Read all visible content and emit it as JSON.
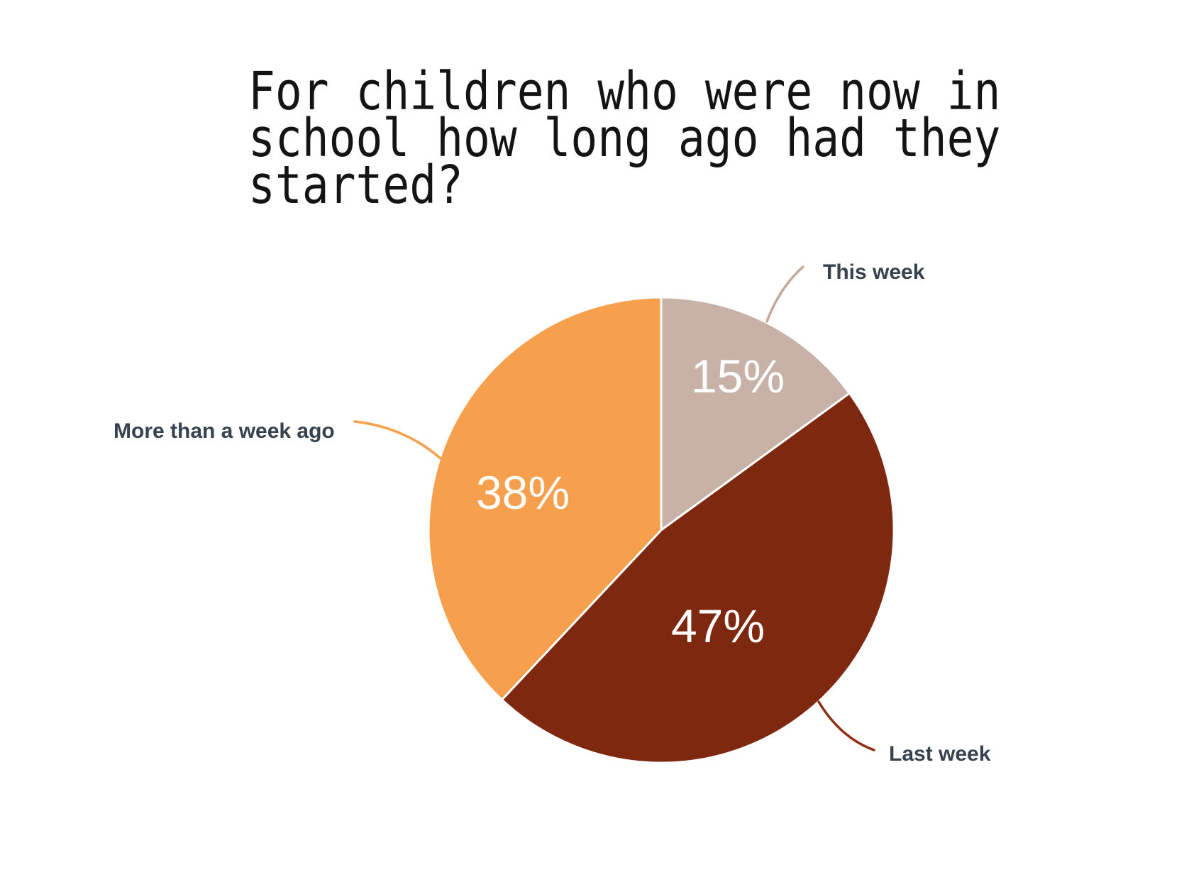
{
  "title": {
    "lines": [
      "For children who were now in",
      "school how long ago had they",
      "started?"
    ]
  },
  "chart_data": {
    "type": "pie",
    "title": "For children who were now in school how long ago had they started?",
    "categories": [
      "This week",
      "Last week",
      "More than a week ago"
    ],
    "values": [
      15,
      47,
      38
    ],
    "unit": "%",
    "value_labels": [
      "15%",
      "47%",
      "38%"
    ],
    "colors": [
      "#C8B2A7",
      "#7E2810",
      "#F6A04E"
    ],
    "leader_colors": [
      "#C3A99C",
      "#8E2F12",
      "#F6A04E"
    ],
    "value_label_color": "#FFFFFF",
    "category_label_color": "#37424E",
    "start_angle_deg": 0,
    "direction": "clockwise",
    "legend_position": "outside-callouts",
    "slice_border_color": "#FFFFFF"
  }
}
